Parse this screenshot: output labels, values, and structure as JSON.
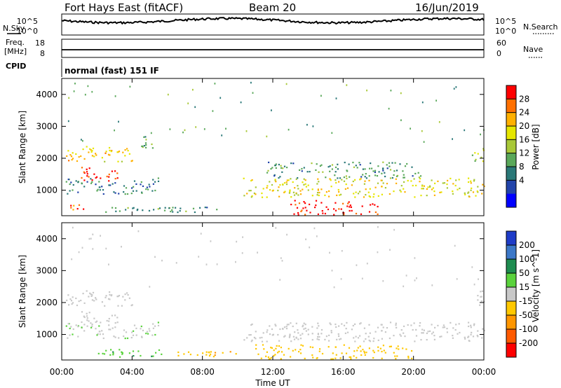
{
  "header": {
    "station": "Fort Hays East (fitACF)",
    "beam": "Beam 20",
    "date": "16/Jun/2019"
  },
  "top_panels": {
    "nsky": {
      "label": "N.Sky",
      "ticks_left": [
        "10^5",
        "10^0"
      ],
      "ticks_right": [
        "10^5",
        "10^0"
      ],
      "legend_label": "N.Search"
    },
    "freq": {
      "label_top": "Freq.",
      "label_unit": "[MHz]",
      "ticks_left": [
        "18",
        "8"
      ],
      "ticks_right": [
        "60",
        "0"
      ],
      "legend_label": "Nave"
    },
    "cpid": {
      "label": "CPID",
      "value": "normal (fast) 151 IF"
    }
  },
  "power_panel": {
    "ylabel": "Slant Range [km]",
    "colorbar_label": "Power [dB]",
    "colorbar_ticks": [
      "28",
      "24",
      "20",
      "16",
      "12",
      "8",
      "4"
    ],
    "colorbar_colors": [
      "#ff0000",
      "#ff7000",
      "#ffb000",
      "#e6e600",
      "#a8c838",
      "#5aa85a",
      "#2a7878",
      "#2244aa",
      "#0000ff"
    ]
  },
  "velocity_panel": {
    "ylabel": "Slant Range [km]",
    "colorbar_label": "Velocity [m s^-1]",
    "colorbar_ticks": [
      "200",
      "100",
      "50",
      "15",
      "-15",
      "-50",
      "-100",
      "-200"
    ],
    "colorbar_colors": [
      "#1e3cc8",
      "#3c78c8",
      "#1e8c50",
      "#5ad23c",
      "#c8c8c8",
      "#ffc800",
      "#ff9600",
      "#ff5a00",
      "#ff0000"
    ]
  },
  "x_axis": {
    "label": "Time UT",
    "ticks": [
      "00:00",
      "04:00",
      "08:00",
      "12:00",
      "16:00",
      "20:00",
      "00:00"
    ]
  },
  "chart_data": {
    "type": "heatmap",
    "x_unit": "hours UT",
    "xlim": [
      0,
      24
    ],
    "ylim": [
      200,
      4500
    ],
    "y_ticks": [
      1000,
      2000,
      3000,
      4000
    ],
    "power_clusters": [
      {
        "t0": 0.2,
        "t1": 4.0,
        "r0": 1900,
        "r1": 2400,
        "level": 20
      },
      {
        "t0": 1.0,
        "t1": 3.2,
        "r0": 1300,
        "r1": 1750,
        "level": 28
      },
      {
        "t0": 0.2,
        "t1": 5.5,
        "r0": 900,
        "r1": 1400,
        "level": 8
      },
      {
        "t0": 0.2,
        "t1": 1.5,
        "r0": 400,
        "r1": 600,
        "level": 24
      },
      {
        "t0": 4.5,
        "t1": 5.2,
        "r0": 2100,
        "r1": 2700,
        "level": 12
      },
      {
        "t0": 2.0,
        "t1": 9.0,
        "r0": 300,
        "r1": 500,
        "level": 10
      },
      {
        "t0": 10.3,
        "t1": 24.0,
        "r0": 800,
        "r1": 1400,
        "level": 18
      },
      {
        "t0": 13.0,
        "t1": 18.0,
        "r0": 250,
        "r1": 700,
        "level": 28
      },
      {
        "t0": 11.5,
        "t1": 20.5,
        "r0": 1400,
        "r1": 1900,
        "level": 10
      },
      {
        "t0": 23.3,
        "t1": 24.0,
        "r0": 1900,
        "r1": 2400,
        "level": 16
      }
    ],
    "velocity_clusters": [
      {
        "t0": 0.2,
        "t1": 4.0,
        "r0": 1900,
        "r1": 2400,
        "v": 0
      },
      {
        "t0": 1.0,
        "t1": 3.2,
        "r0": 1300,
        "r1": 1750,
        "v": 0
      },
      {
        "t0": 0.2,
        "t1": 5.5,
        "r0": 900,
        "r1": 1400,
        "v": 5
      },
      {
        "t0": 2.0,
        "t1": 6.0,
        "r0": 300,
        "r1": 550,
        "v": 40
      },
      {
        "t0": 6.0,
        "t1": 10.0,
        "r0": 300,
        "r1": 500,
        "v": -40
      },
      {
        "t0": 10.3,
        "t1": 24.0,
        "r0": 800,
        "r1": 1400,
        "v": 0
      },
      {
        "t0": 11.0,
        "t1": 20.0,
        "r0": 250,
        "r1": 700,
        "v": -30
      },
      {
        "t0": 23.3,
        "t1": 24.0,
        "r0": 1900,
        "r1": 2400,
        "v": 0
      }
    ]
  }
}
